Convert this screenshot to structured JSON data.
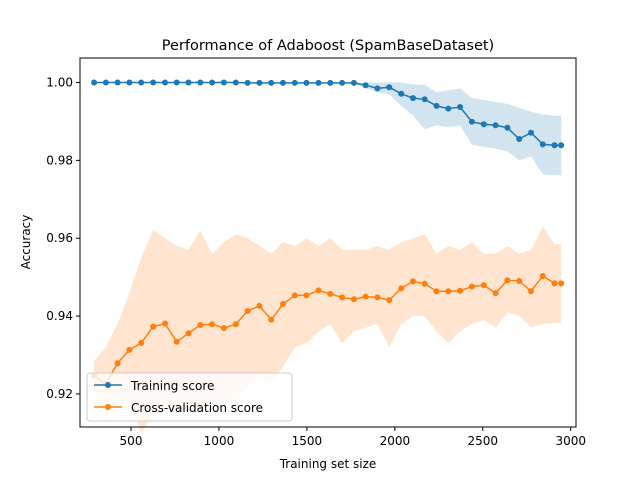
{
  "chart_data": {
    "type": "line",
    "title": "Performance of Adaboost (SpamBaseDataset)",
    "xlabel": "Training set size",
    "ylabel": "Accuracy",
    "xlim": [
      210,
      3030
    ],
    "ylim": [
      0.9115,
      1.0063
    ],
    "xticks": [
      500,
      1000,
      1500,
      2000,
      2500,
      3000
    ],
    "xtick_labels": [
      "500",
      "1000",
      "1500",
      "2000",
      "2500",
      "3000"
    ],
    "yticks": [
      0.92,
      0.94,
      0.96,
      0.98,
      1.0
    ],
    "ytick_labels": [
      "0.92",
      "0.94",
      "0.96",
      "0.98",
      "1.00"
    ],
    "grid": false,
    "legend_position": "lower-left",
    "x": [
      290,
      357,
      424,
      491,
      558,
      626,
      693,
      760,
      827,
      894,
      961,
      1028,
      1096,
      1163,
      1230,
      1297,
      1364,
      1431,
      1498,
      1566,
      1633,
      1700,
      1767,
      1834,
      1901,
      1968,
      2036,
      2103,
      2170,
      2237,
      2304,
      2371,
      2438,
      2506,
      2573,
      2640,
      2707,
      2774,
      2841,
      2908,
      2946
    ],
    "series": [
      {
        "name": "Training score",
        "color": "#1f77b4",
        "values": [
          1.0,
          1.0,
          1.0,
          1.0,
          1.0,
          1.0,
          1.0,
          1.0,
          1.0,
          1.0,
          1.0,
          1.0,
          1.0,
          0.9999,
          0.9999,
          0.9999,
          0.9999,
          0.9999,
          0.9999,
          0.9999,
          0.9999,
          0.9999,
          0.9999,
          0.9993,
          0.9985,
          0.9988,
          0.9971,
          0.996,
          0.9957,
          0.994,
          0.9933,
          0.9937,
          0.9899,
          0.9893,
          0.989,
          0.9884,
          0.9855,
          0.9871,
          0.9841,
          0.9839,
          0.9839
        ],
        "band_upper": [
          1.0,
          1.0,
          1.0,
          1.0,
          1.0,
          1.0,
          1.0,
          1.0,
          1.0,
          1.0,
          1.0,
          1.0,
          1.0,
          1.0,
          1.0,
          1.0,
          1.0,
          1.0,
          1.0,
          1.0,
          1.0,
          1.0,
          1.0,
          1.0,
          1.0,
          1.0,
          1.0,
          0.9995,
          0.9995,
          0.9975,
          0.998,
          0.9985,
          0.996,
          0.9955,
          0.995,
          0.9945,
          0.9935,
          0.9925,
          0.9918,
          0.9915,
          0.9915
        ],
        "band_lower": [
          1.0,
          1.0,
          1.0,
          1.0,
          1.0,
          1.0,
          1.0,
          1.0,
          1.0,
          1.0,
          1.0,
          1.0,
          1.0,
          0.9998,
          0.9998,
          0.9998,
          0.9998,
          0.9998,
          0.9998,
          0.9998,
          0.9998,
          0.9998,
          0.9998,
          0.9985,
          0.9975,
          0.997,
          0.994,
          0.9915,
          0.988,
          0.989,
          0.9885,
          0.989,
          0.984,
          0.9835,
          0.983,
          0.9823,
          0.98,
          0.981,
          0.9764,
          0.9762,
          0.9762
        ]
      },
      {
        "name": "Cross-validation score",
        "color": "#ff7f0e",
        "values": [
          0.9247,
          0.9226,
          0.9279,
          0.9313,
          0.9331,
          0.9373,
          0.9381,
          0.9334,
          0.9356,
          0.9377,
          0.9379,
          0.9369,
          0.9379,
          0.9413,
          0.9426,
          0.9391,
          0.9431,
          0.9453,
          0.9453,
          0.9466,
          0.9457,
          0.9448,
          0.9443,
          0.945,
          0.9448,
          0.9441,
          0.9471,
          0.9489,
          0.9483,
          0.9464,
          0.9464,
          0.9465,
          0.9476,
          0.9479,
          0.9459,
          0.9492,
          0.949,
          0.9464,
          0.9503,
          0.9484,
          0.9484
        ],
        "band_upper": [
          0.9285,
          0.932,
          0.938,
          0.946,
          0.955,
          0.962,
          0.96,
          0.958,
          0.957,
          0.962,
          0.956,
          0.959,
          0.961,
          0.96,
          0.958,
          0.956,
          0.959,
          0.958,
          0.96,
          0.958,
          0.96,
          0.957,
          0.957,
          0.957,
          0.958,
          0.957,
          0.959,
          0.96,
          0.961,
          0.956,
          0.958,
          0.957,
          0.959,
          0.956,
          0.956,
          0.958,
          0.956,
          0.957,
          0.963,
          0.9585,
          0.9585
        ],
        "band_lower": [
          0.921,
          0.914,
          0.918,
          0.918,
          0.91,
          0.915,
          0.918,
          0.915,
          0.916,
          0.917,
          0.918,
          0.917,
          0.918,
          0.922,
          0.924,
          0.923,
          0.927,
          0.932,
          0.933,
          0.936,
          0.938,
          0.933,
          0.936,
          0.937,
          0.938,
          0.932,
          0.938,
          0.94,
          0.94,
          0.936,
          0.933,
          0.936,
          0.938,
          0.939,
          0.937,
          0.941,
          0.94,
          0.937,
          0.938,
          0.9382,
          0.9382
        ]
      }
    ]
  }
}
